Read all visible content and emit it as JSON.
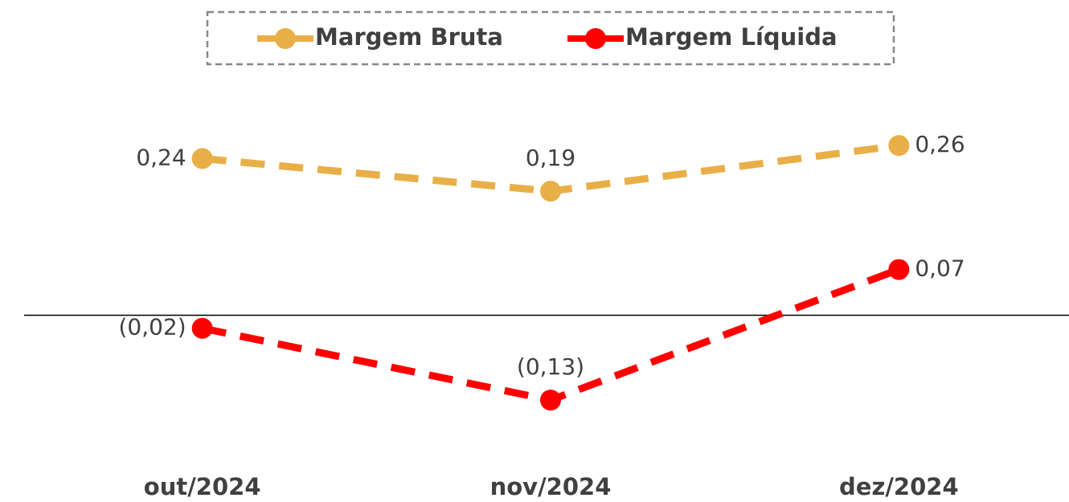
{
  "chart_data": {
    "type": "line",
    "categories": [
      "out/2024",
      "nov/2024",
      "dez/2024"
    ],
    "series": [
      {
        "name": "Margem Bruta",
        "color": "#E9AF47",
        "values": [
          0.24,
          0.19,
          0.26
        ],
        "value_labels": [
          "0,24",
          "0,19",
          "0,26"
        ]
      },
      {
        "name": "Margem Líquida",
        "color": "#FF0000",
        "values": [
          -0.02,
          -0.13,
          0.07
        ],
        "value_labels": [
          "(0,02)",
          "(0,13)",
          "0,07"
        ]
      }
    ],
    "ylim": [
      -0.2,
      0.35
    ],
    "legend": "top"
  }
}
